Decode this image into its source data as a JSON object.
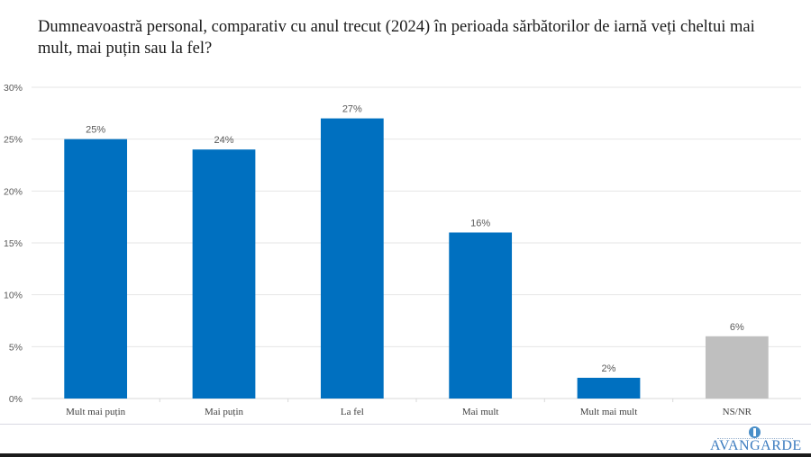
{
  "header": {
    "title": "Dumneavoastră personal, comparativ cu anul trecut (2024) în perioada sărbătorilor de iarnă veți cheltui mai mult, mai puțin sau la fel?"
  },
  "logo": {
    "text": "AVANGARDE",
    "icon": "avangarde-logo-icon"
  },
  "chart_data": {
    "type": "bar",
    "title": "Dumneavoastră personal, comparativ cu anul trecut (2024) în perioada sărbătorilor de iarnă veți cheltui mai mult, mai puțin sau la fel?",
    "xlabel": "",
    "ylabel": "",
    "categories": [
      "Mult mai puțin",
      "Mai puțin",
      "La fel",
      "Mai mult",
      "Mult mai mult",
      "NS/NR"
    ],
    "values": [
      25,
      24,
      27,
      16,
      2,
      6
    ],
    "data_labels": [
      "25%",
      "24%",
      "27%",
      "16%",
      "2%",
      "6%"
    ],
    "bar_colors": [
      "#0070c0",
      "#0070c0",
      "#0070c0",
      "#0070c0",
      "#0070c0",
      "#bfbfbf"
    ],
    "ylim": [
      0,
      30
    ],
    "yticks": [
      0,
      5,
      10,
      15,
      20,
      25,
      30
    ],
    "ytick_labels": [
      "0%",
      "5%",
      "10%",
      "15%",
      "20%",
      "25%",
      "30%"
    ],
    "grid": true,
    "legend": "none",
    "colors": {
      "gridline": "#e6e6e6",
      "tick_text": "#595959",
      "label_text": "#404040"
    }
  }
}
